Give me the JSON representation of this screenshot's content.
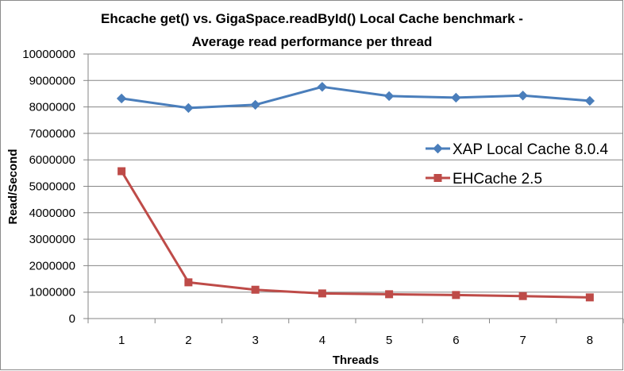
{
  "chart_data": {
    "type": "line",
    "title_lines": [
      "Ehcache get() vs. GigaSpace.readById()  Local Cache benchmark -",
      "Average read performance per thread"
    ],
    "xlabel": "Threads",
    "ylabel": "Read/Second",
    "x": [
      1,
      2,
      3,
      4,
      5,
      6,
      7,
      8
    ],
    "ylim": [
      0,
      10000000
    ],
    "yticks": [
      "0",
      "1000000",
      "2000000",
      "3000000",
      "4000000",
      "5000000",
      "6000000",
      "7000000",
      "8000000",
      "9000000",
      "10000000"
    ],
    "grid": "horizontal major",
    "legend_position": "right",
    "series": [
      {
        "name": "XAP Local Cache 8.0.4",
        "color": "#4a7ebb",
        "marker": "diamond",
        "values": [
          8320000,
          7960000,
          8080000,
          8760000,
          8410000,
          8350000,
          8430000,
          8230000
        ]
      },
      {
        "name": "EHCache 2.5",
        "color": "#be4b48",
        "marker": "square",
        "values": [
          5570000,
          1370000,
          1090000,
          950000,
          920000,
          890000,
          850000,
          800000
        ]
      }
    ]
  }
}
